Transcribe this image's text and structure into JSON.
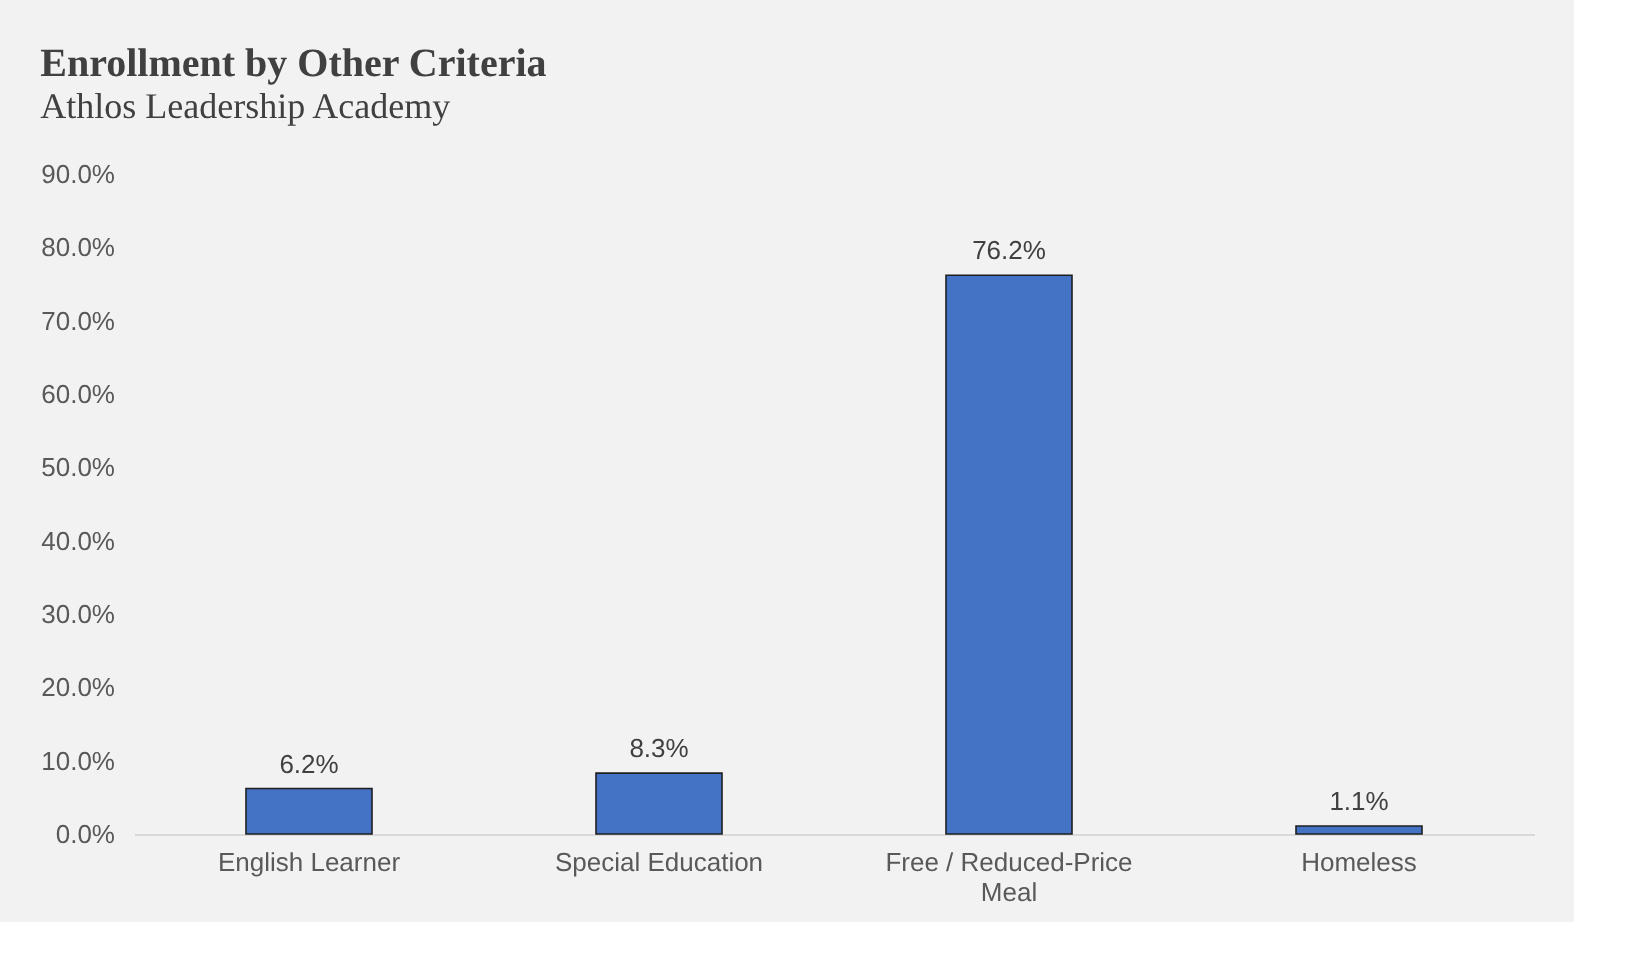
{
  "chart_data": {
    "type": "bar",
    "title": "Enrollment by Other Criteria",
    "subtitle": "Athlos Leadership Academy",
    "categories": [
      "English Learner",
      "Special Education",
      "Free / Reduced-Price Meal",
      "Homeless"
    ],
    "values": [
      6.2,
      8.3,
      76.2,
      1.1
    ],
    "color": "#4472c4",
    "value_labels": [
      "6.2%",
      "8.3%",
      "76.2%",
      "1.1%"
    ],
    "ylim": [
      0,
      90
    ],
    "yticks": [
      {
        "value": 0,
        "label": "0.0%"
      },
      {
        "value": 10,
        "label": "10.0%"
      },
      {
        "value": 20,
        "label": "20.0%"
      },
      {
        "value": 30,
        "label": "30.0%"
      },
      {
        "value": 40,
        "label": "40.0%"
      },
      {
        "value": 50,
        "label": "50.0%"
      },
      {
        "value": 60,
        "label": "60.0%"
      },
      {
        "value": 70,
        "label": "70.0%"
      },
      {
        "value": 80,
        "label": "80.0%"
      },
      {
        "value": 90,
        "label": "90.0%"
      }
    ],
    "grid": false
  }
}
